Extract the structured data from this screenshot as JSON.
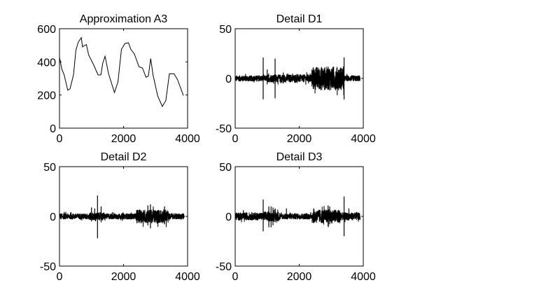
{
  "chart_data": [
    {
      "type": "line",
      "title": "Approximation A3",
      "xlim": [
        0,
        4000
      ],
      "ylim": [
        0,
        600
      ],
      "xticks": [
        0,
        2000,
        4000
      ],
      "yticks": [
        0,
        200,
        400,
        600
      ],
      "grid": false,
      "x": [
        0,
        73,
        146,
        255,
        328,
        438,
        511,
        584,
        679,
        720,
        766,
        839,
        912,
        1058,
        1204,
        1292,
        1350,
        1423,
        1533,
        1715,
        1825,
        1934,
        2044,
        2153,
        2226,
        2336,
        2482,
        2591,
        2701,
        2774,
        2847,
        2920,
        3066,
        3212,
        3321,
        3431,
        3577,
        3686,
        3869
      ],
      "y": [
        427,
        356,
        321,
        230,
        237,
        321,
        469,
        518,
        546,
        490,
        497,
        504,
        441,
        385,
        321,
        321,
        392,
        434,
        328,
        215,
        279,
        476,
        511,
        515,
        476,
        448,
        370,
        363,
        307,
        314,
        420,
        321,
        194,
        131,
        166,
        328,
        328,
        293,
        197
      ]
    },
    {
      "type": "line",
      "title": "Detail D1",
      "xlim": [
        0,
        4000
      ],
      "ylim": [
        -50,
        50
      ],
      "xticks": [
        0,
        2000,
        4000
      ],
      "yticks": [
        -50,
        0,
        50
      ],
      "grid": false,
      "x_end": 3900,
      "noise_envelope": [
        [
          0,
          1000,
          3
        ],
        [
          1000,
          2380,
          4
        ],
        [
          2380,
          3400,
          12
        ],
        [
          3400,
          3900,
          3
        ]
      ],
      "spikes": [
        [
          874,
          21,
          -21
        ],
        [
          1246,
          20,
          -20
        ],
        [
          3400,
          21,
          -21
        ],
        [
          1000,
          9,
          -6
        ],
        [
          1500,
          6,
          -5
        ]
      ]
    },
    {
      "type": "line",
      "title": "Detail D2",
      "xlim": [
        0,
        4000
      ],
      "ylim": [
        -50,
        50
      ],
      "xticks": [
        0,
        2000,
        4000
      ],
      "yticks": [
        -50,
        0,
        50
      ],
      "grid": false,
      "x_end": 3900,
      "noise_envelope": [
        [
          0,
          900,
          3
        ],
        [
          900,
          1400,
          4
        ],
        [
          1400,
          2400,
          3
        ],
        [
          2400,
          3400,
          7
        ],
        [
          3400,
          3900,
          3
        ]
      ],
      "spikes": [
        [
          1187,
          21,
          -22
        ],
        [
          1000,
          9,
          -5
        ],
        [
          1100,
          8,
          -4
        ],
        [
          1300,
          10,
          -6
        ],
        [
          2760,
          11,
          -9
        ],
        [
          2840,
          12,
          -12
        ],
        [
          3280,
          10,
          -8
        ]
      ]
    },
    {
      "type": "line",
      "title": "Detail D3",
      "xlim": [
        0,
        4000
      ],
      "ylim": [
        -50,
        50
      ],
      "xticks": [
        0,
        2000,
        4000
      ],
      "yticks": [
        -50,
        0,
        50
      ],
      "grid": false,
      "x_end": 3900,
      "noise_envelope": [
        [
          0,
          900,
          4
        ],
        [
          900,
          1400,
          5
        ],
        [
          1400,
          2400,
          3
        ],
        [
          2400,
          3300,
          7
        ],
        [
          3300,
          3900,
          4
        ]
      ],
      "spikes": [
        [
          874,
          17,
          -15
        ],
        [
          1050,
          10,
          -11
        ],
        [
          1120,
          10,
          -11
        ],
        [
          1180,
          9,
          -9
        ],
        [
          1250,
          8,
          -6
        ],
        [
          1600,
          8,
          -3
        ],
        [
          2900,
          11,
          -10
        ],
        [
          2950,
          10,
          -8
        ],
        [
          3400,
          20,
          -20
        ],
        [
          3550,
          8,
          -4
        ]
      ]
    }
  ]
}
